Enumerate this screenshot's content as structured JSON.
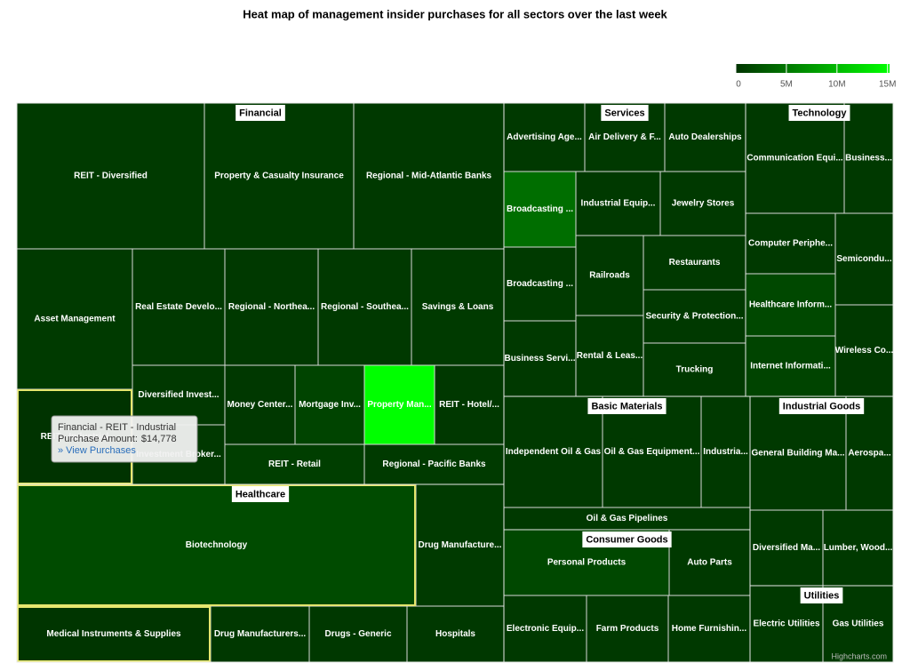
{
  "chart_data": {
    "type": "treemap",
    "title": "Heat map of management insider purchases for all sectors over the last week",
    "color_axis": {
      "min_color": "#003300",
      "max_color": "#00ff00",
      "lim": [
        0,
        15200000
      ],
      "ticks": [
        0,
        {
          "value": 5000000,
          "label": "5M"
        },
        {
          "value": 10000000,
          "label": "10M"
        },
        {
          "value": 15000000,
          "label": "15M"
        }
      ]
    },
    "highlight_color": "#e6e66e",
    "sectors": [
      {
        "name": "Financial",
        "cells": [
          {
            "name": "REIT - Diversified",
            "value": 500000
          },
          {
            "name": "Property & Casualty Insurance",
            "value": 500000
          },
          {
            "name": "Regional - Mid-Atlantic Banks",
            "value": 450000
          },
          {
            "name": "Asset Management",
            "value": 500000
          },
          {
            "name": "Real Estate Develo...",
            "value": 450000
          },
          {
            "name": "Regional - Northea...",
            "value": 450000
          },
          {
            "name": "Regional - Southea...",
            "value": 450000
          },
          {
            "name": "Savings & Loans",
            "value": 500000
          },
          {
            "name": "REIT - Industrial",
            "value": 14778,
            "highlighted": true
          },
          {
            "name": "Diversified Invest...",
            "value": 400000
          },
          {
            "name": "Investment Broker...",
            "value": 400000
          },
          {
            "name": "Money Center...",
            "value": 400000
          },
          {
            "name": "Mortgage Inv...",
            "value": 1300000
          },
          {
            "name": "Property Man...",
            "value": 15200000
          },
          {
            "name": "REIT - Hotel/...",
            "value": 400000
          },
          {
            "name": "REIT - Retail",
            "value": 800000
          },
          {
            "name": "Regional - Pacific Banks",
            "value": 500000
          }
        ]
      },
      {
        "name": "Healthcare",
        "cells": [
          {
            "name": "Biotechnology",
            "value": 1800000,
            "highlighted": true
          },
          {
            "name": "Drug Manufacture...",
            "value": 500000
          },
          {
            "name": "Medical Instruments & Supplies",
            "value": 150000,
            "highlighted": true
          },
          {
            "name": "Drug Manufacturers...",
            "value": 400000
          },
          {
            "name": "Drugs - Generic",
            "value": 400000
          },
          {
            "name": "Hospitals",
            "value": 400000
          }
        ]
      },
      {
        "name": "Services",
        "cells": [
          {
            "name": "Advertising Age...",
            "value": 450000
          },
          {
            "name": "Air Delivery & F...",
            "value": 450000
          },
          {
            "name": "Auto Dealerships",
            "value": 450000
          },
          {
            "name": "Broadcasting ...",
            "value": 4400000
          },
          {
            "name": "Industrial Equip...",
            "value": 450000
          },
          {
            "name": "Jewelry Stores",
            "value": 450000
          },
          {
            "name": "Broadcasting ...",
            "value": 500000
          },
          {
            "name": "Railroads",
            "value": 450000
          },
          {
            "name": "Restaurants",
            "value": 450000
          },
          {
            "name": "Security & Protection...",
            "value": 450000
          },
          {
            "name": "Business Servi...",
            "value": 450000
          },
          {
            "name": "Rental & Leas...",
            "value": 450000
          },
          {
            "name": "Trucking",
            "value": 450000
          }
        ]
      },
      {
        "name": "Technology",
        "cells": [
          {
            "name": "Communication Equi...",
            "value": 450000
          },
          {
            "name": "Business...",
            "value": 450000
          },
          {
            "name": "Computer Periphe...",
            "value": 450000
          },
          {
            "name": "Semicondu...",
            "value": 450000
          },
          {
            "name": "Healthcare Inform...",
            "value": 1600000
          },
          {
            "name": "Wireless Co...",
            "value": 450000
          },
          {
            "name": "Internet Informati...",
            "value": 1300000
          }
        ]
      },
      {
        "name": "Basic Materials",
        "cells": [
          {
            "name": "Independent Oil & Gas",
            "value": 450000
          },
          {
            "name": "Oil & Gas Equipment...",
            "value": 450000
          },
          {
            "name": "Industria...",
            "value": 450000
          },
          {
            "name": "Oil & Gas Pipelines",
            "value": 450000
          }
        ]
      },
      {
        "name": "Consumer Goods",
        "cells": [
          {
            "name": "Personal Products",
            "value": 1600000
          },
          {
            "name": "Auto Parts",
            "value": 450000
          },
          {
            "name": "Electronic Equip...",
            "value": 450000
          },
          {
            "name": "Farm Products",
            "value": 450000
          },
          {
            "name": "Home Furnishin...",
            "value": 450000
          }
        ]
      },
      {
        "name": "Industrial Goods",
        "cells": [
          {
            "name": "General Building Ma...",
            "value": 450000
          },
          {
            "name": "Aerospa...",
            "value": 450000
          },
          {
            "name": "Diversified Ma...",
            "value": 450000
          },
          {
            "name": "Lumber, Wood...",
            "value": 450000
          }
        ]
      },
      {
        "name": "Utilities",
        "cells": [
          {
            "name": "Electric Utilities",
            "value": 450000
          },
          {
            "name": "Gas Utilities",
            "value": 450000
          }
        ]
      }
    ],
    "tooltip": {
      "title": "Financial - REIT - Industrial",
      "label": "Purchase Amount:",
      "value": 14778,
      "value_label": "$14,778",
      "link": "» View Purchases"
    },
    "credits": "Highcharts.com"
  }
}
